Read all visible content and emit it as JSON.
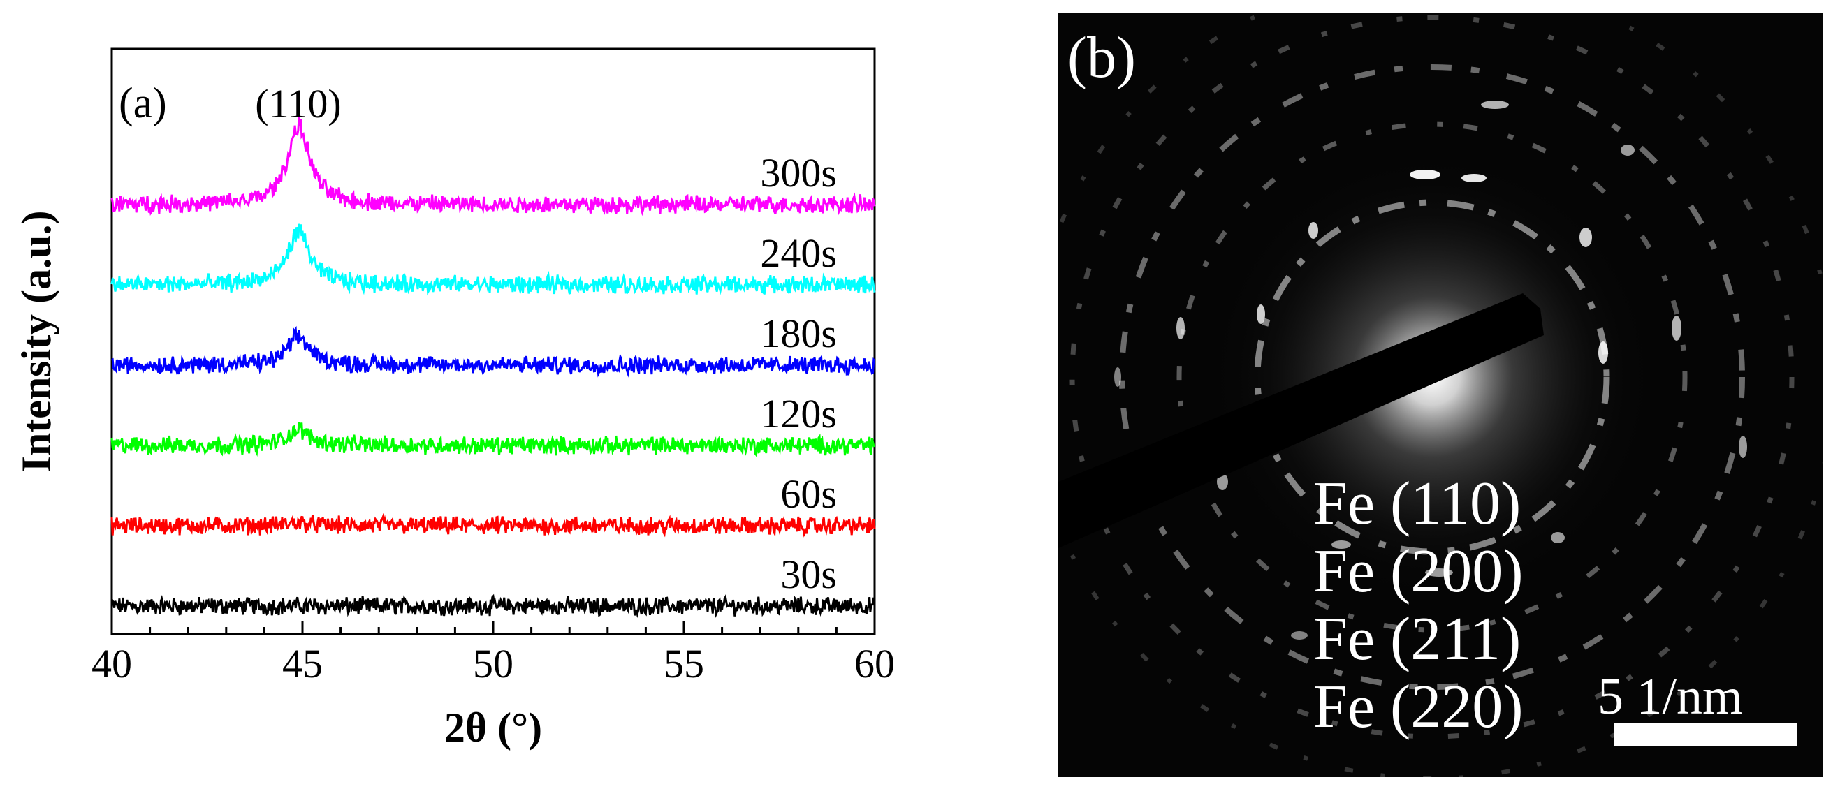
{
  "chart_data": [
    {
      "type": "line",
      "panel_label": "(a)",
      "xlabel": "2θ (°)",
      "ylabel": "Intensity (a.u.)",
      "xlim": [
        40,
        60
      ],
      "xticks": [
        "40",
        "45",
        "50",
        "55",
        "60"
      ],
      "peak_annotation": {
        "text": "(110)",
        "x": 45
      },
      "peak_position": 44.9,
      "series": [
        {
          "name": "30s",
          "color": "#000000",
          "offset": 0,
          "peak_height": 0.0,
          "noise": 0.22
        },
        {
          "name": "60s",
          "color": "#ff0000",
          "offset": 1,
          "peak_height": 0.05,
          "noise": 0.22
        },
        {
          "name": "120s",
          "color": "#00ff00",
          "offset": 2,
          "peak_height": 0.25,
          "noise": 0.22
        },
        {
          "name": "180s",
          "color": "#0000ff",
          "offset": 3,
          "peak_height": 0.45,
          "noise": 0.22
        },
        {
          "name": "240s",
          "color": "#00ffff",
          "offset": 4,
          "peak_height": 0.85,
          "noise": 0.22
        },
        {
          "name": "300s",
          "color": "#ff00ff",
          "offset": 5,
          "peak_height": 1.25,
          "noise": 0.22
        }
      ]
    },
    {
      "type": "image",
      "panel_label": "(b)",
      "description_labels": [
        "Fe (110)",
        "Fe (200)",
        "Fe (211)",
        "Fe (220)"
      ],
      "scale_bar_label": "5 1/nm"
    }
  ]
}
